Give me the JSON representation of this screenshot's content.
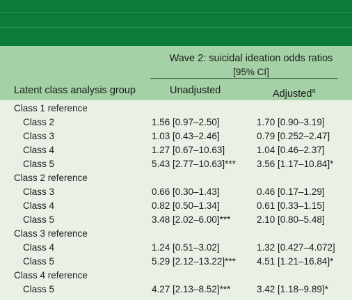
{
  "header": {
    "wave_title_line1": "Wave 2: suicidal ideation odds ratios",
    "wave_title_line2": "[95% CI]",
    "col_group": "Latent class analysis group",
    "col_unadjusted": "Unadjusted",
    "col_adjusted": "Adjusted",
    "col_adjusted_footnote": "a"
  },
  "rows": [
    {
      "type": "group",
      "label": "Class 1 reference",
      "unadjusted": "",
      "adjusted": ""
    },
    {
      "type": "sub",
      "label": "Class 2",
      "unadjusted": "1.56 [0.97–2.50]",
      "adjusted": "1.70 [0.90–3.19]"
    },
    {
      "type": "sub",
      "label": "Class 3",
      "unadjusted": "1.03 [0.43–2.46]",
      "adjusted": "0.79 [0.252–2.47]"
    },
    {
      "type": "sub",
      "label": "Class 4",
      "unadjusted": "1.27 [0.67–10.63]",
      "adjusted": "1.04 [0.46–2.37]"
    },
    {
      "type": "sub",
      "label": "Class 5",
      "unadjusted": "5.43 [2.77–10.63]***",
      "adjusted": "3.56 [1.17–10.84]*"
    },
    {
      "type": "group",
      "label": "Class 2 reference",
      "unadjusted": "",
      "adjusted": ""
    },
    {
      "type": "sub",
      "label": "Class 3",
      "unadjusted": "0.66 [0.30–1.43]",
      "adjusted": "0.46 [0.17–1.29]"
    },
    {
      "type": "sub",
      "label": "Class 4",
      "unadjusted": "0.82 [0.50–1.34]",
      "adjusted": "0.61 [0.33–1.15]"
    },
    {
      "type": "sub",
      "label": "Class 5",
      "unadjusted": "3.48 [2.02–6.00]***",
      "adjusted": "2.10 [0.80–5.48]"
    },
    {
      "type": "group",
      "label": "Class 3 reference",
      "unadjusted": "",
      "adjusted": ""
    },
    {
      "type": "sub",
      "label": "Class 4",
      "unadjusted": "1.24 [0.51–3.02]",
      "adjusted": "1.32 [0.427–4.072]"
    },
    {
      "type": "sub",
      "label": "Class 5",
      "unadjusted": "5.29 [2.12–13.22]***",
      "adjusted": "4.51 [1.21–16.84]*"
    },
    {
      "type": "group",
      "label": "Class 4 reference",
      "unadjusted": "",
      "adjusted": ""
    },
    {
      "type": "sub",
      "label": "Class 5",
      "unadjusted": "4.27 [2.13–8.52]***",
      "adjusted": "3.42 [1.18–9.89]*"
    }
  ]
}
